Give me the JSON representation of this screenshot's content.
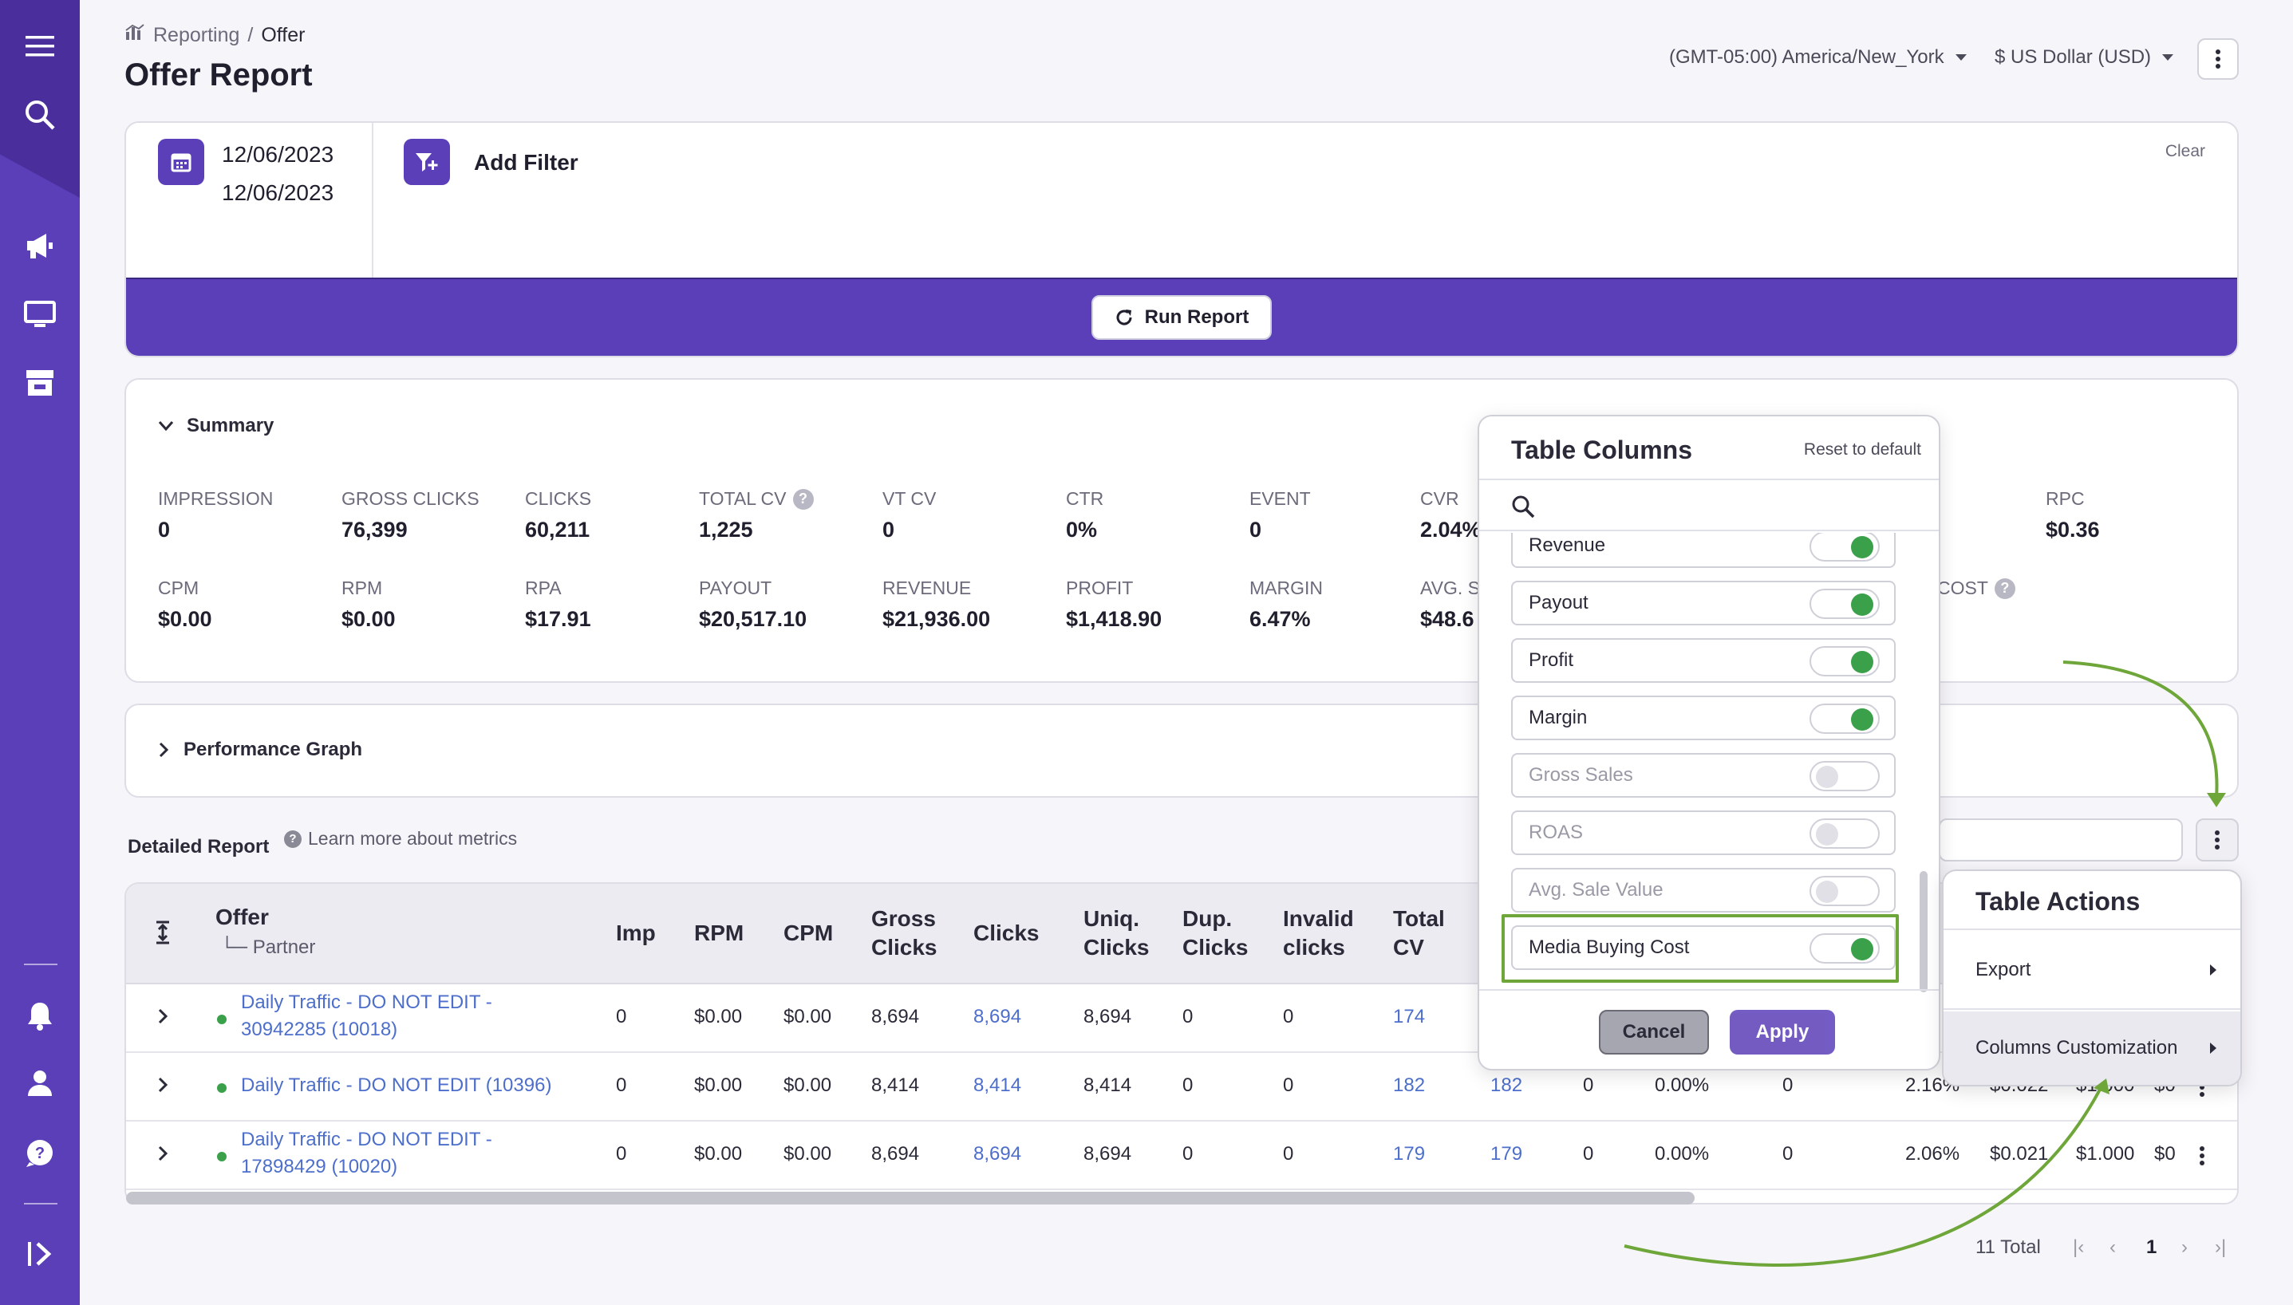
{
  "breadcrumb": {
    "parent": "Reporting",
    "separator": "/",
    "current": "Offer"
  },
  "page_title": "Offer Report",
  "header": {
    "timezone": "(GMT-05:00) America/New_York",
    "currency": "$ US Dollar (USD)"
  },
  "filters": {
    "date_start": "12/06/2023",
    "date_end": "12/06/2023",
    "add_filter": "Add Filter",
    "clear": "Clear",
    "run_report": "Run Report"
  },
  "summary": {
    "title": "Summary",
    "row1": [
      {
        "label": "IMPRESSION",
        "value": "0"
      },
      {
        "label": "GROSS CLICKS",
        "value": "76,399"
      },
      {
        "label": "CLICKS",
        "value": "60,211"
      },
      {
        "label": "TOTAL CV",
        "value": "1,225"
      },
      {
        "label": "VT CV",
        "value": "0"
      },
      {
        "label": "CTR",
        "value": "0%"
      },
      {
        "label": "EVENT",
        "value": "0"
      },
      {
        "label": "CVR",
        "value": "2.04%"
      },
      {
        "label": "RPC",
        "value": "$0.36"
      }
    ],
    "row2": [
      {
        "label": "CPM",
        "value": "$0.00"
      },
      {
        "label": "RPM",
        "value": "$0.00"
      },
      {
        "label": "RPA",
        "value": "$17.91"
      },
      {
        "label": "PAYOUT",
        "value": "$20,517.10"
      },
      {
        "label": "REVENUE",
        "value": "$21,936.00"
      },
      {
        "label": "PROFIT",
        "value": "$1,418.90"
      },
      {
        "label": "MARGIN",
        "value": "6.47%"
      },
      {
        "label": "AVG. S",
        "value": "$48.6"
      },
      {
        "label": "COST",
        "value": ""
      }
    ]
  },
  "performance_graph": {
    "title": "Performance Graph"
  },
  "detailed": {
    "title": "Detailed Report",
    "learn_more": "Learn more about metrics"
  },
  "table": {
    "headers": {
      "offer": "Offer",
      "partner": "Partner",
      "imp": "Imp",
      "rpm": "RPM",
      "cpm": "CPM",
      "gross1": "Gross",
      "gross2": "Clicks",
      "clicks": "Clicks",
      "uniq1": "Uniq.",
      "uniq2": "Clicks",
      "dup1": "Dup.",
      "dup2": "Clicks",
      "inv1": "Invalid",
      "inv2": "clicks",
      "tcv1": "Total",
      "tcv2": "CV"
    },
    "rows": [
      {
        "offer1": "Daily Traffic - DO NOT EDIT -",
        "offer2": "30942285 (10018)",
        "imp": "0",
        "rpm": "$0.00",
        "cpm": "$0.00",
        "gross": "8,694",
        "clicks": "8,694",
        "uniq": "8,694",
        "dup": "0",
        "invalid": "0",
        "tcv": "174",
        "c2": "",
        "c3": "",
        "c4": "",
        "c5": "",
        "c6": "",
        "c7": "",
        "c8": "",
        "c9": ""
      },
      {
        "offer1": "Daily Traffic - DO NOT EDIT (10396)",
        "offer2": "",
        "imp": "0",
        "rpm": "$0.00",
        "cpm": "$0.00",
        "gross": "8,414",
        "clicks": "8,414",
        "uniq": "8,414",
        "dup": "0",
        "invalid": "0",
        "tcv": "182",
        "c2": "182",
        "c3": "0",
        "c4": "0.00%",
        "c5": "0",
        "c6": "2.16%",
        "c7": "$0.022",
        "c8": "$1.000",
        "c9": "$0"
      },
      {
        "offer1": "Daily Traffic - DO NOT EDIT -",
        "offer2": "17898429 (10020)",
        "imp": "0",
        "rpm": "$0.00",
        "cpm": "$0.00",
        "gross": "8,694",
        "clicks": "8,694",
        "uniq": "8,694",
        "dup": "0",
        "invalid": "0",
        "tcv": "179",
        "c2": "179",
        "c3": "0",
        "c4": "0.00%",
        "c5": "0",
        "c6": "2.06%",
        "c7": "$0.021",
        "c8": "$1.000",
        "c9": "$0"
      }
    ]
  },
  "pagination": {
    "total": "11 Total",
    "page": "1"
  },
  "table_columns": {
    "title": "Table Columns",
    "reset": "Reset to default",
    "items": [
      {
        "label": "Revenue",
        "on": true
      },
      {
        "label": "Payout",
        "on": true
      },
      {
        "label": "Profit",
        "on": true
      },
      {
        "label": "Margin",
        "on": true
      },
      {
        "label": "Gross Sales",
        "on": false
      },
      {
        "label": "ROAS",
        "on": false
      },
      {
        "label": "Avg. Sale Value",
        "on": false
      },
      {
        "label": "Media Buying Cost",
        "on": true
      }
    ],
    "cancel": "Cancel",
    "apply": "Apply"
  },
  "table_actions": {
    "title": "Table Actions",
    "export": "Export",
    "columns_customization": "Columns Customization"
  },
  "colors": {
    "brand": "#5b3fb8",
    "toggle_on": "#3aa14a",
    "link": "#4d6fcb",
    "highlight": "#6ea63a"
  }
}
